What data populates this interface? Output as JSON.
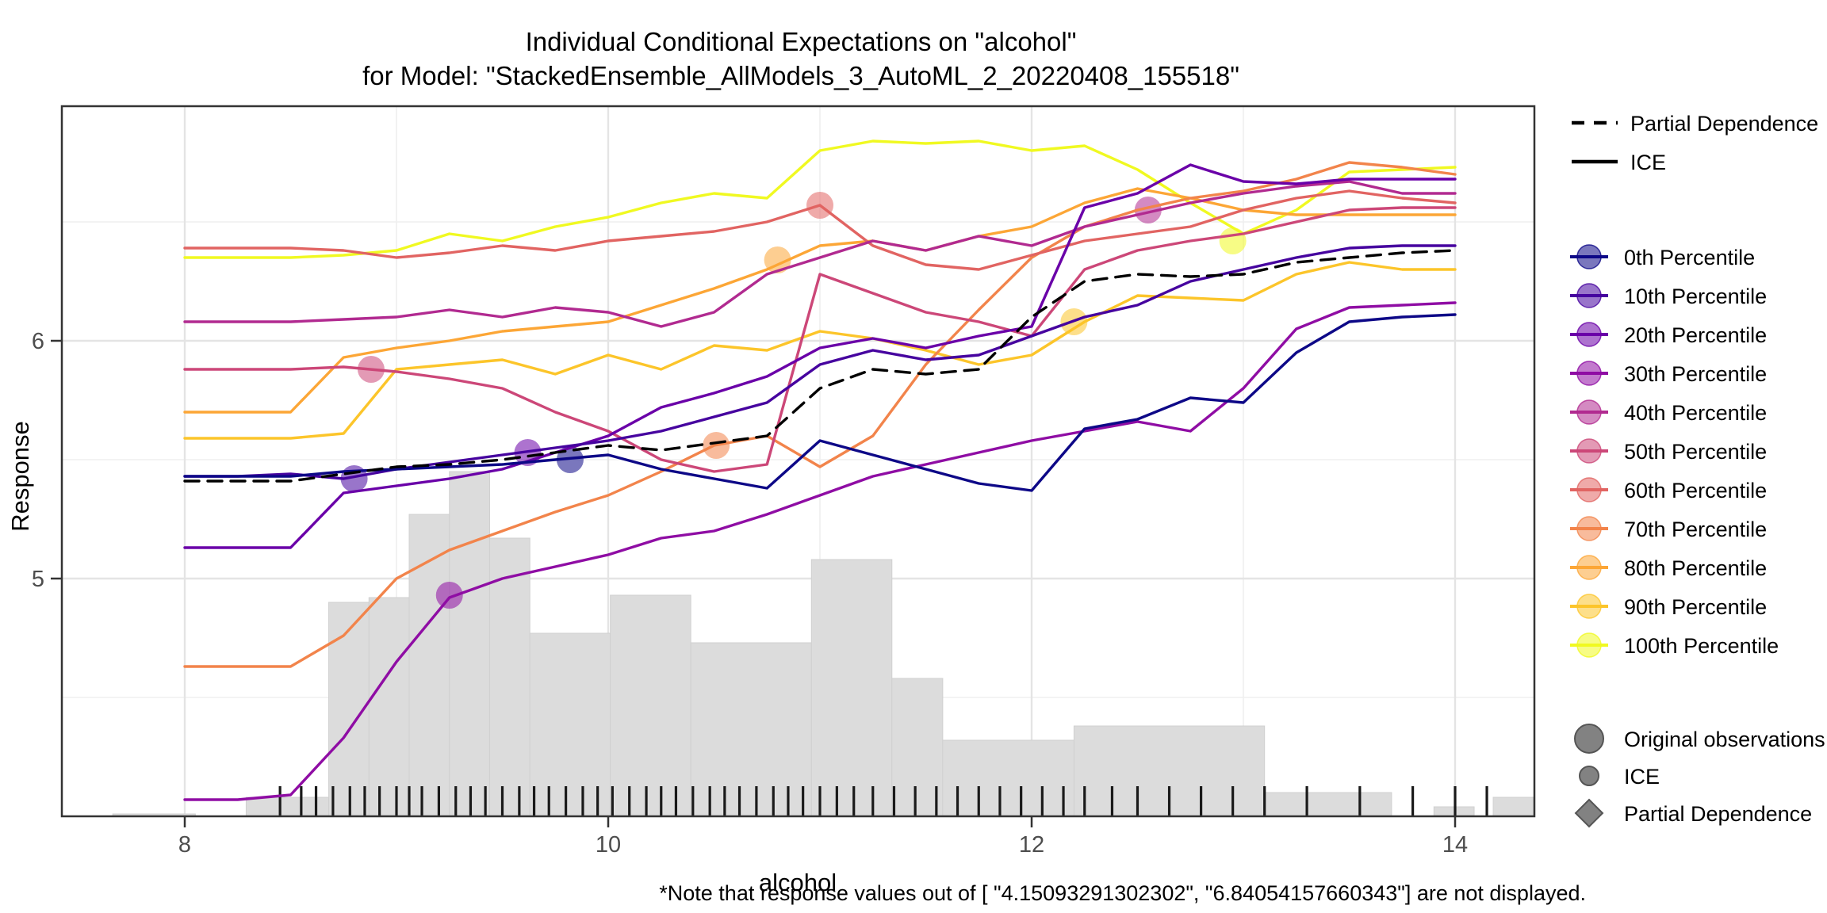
{
  "title": {
    "line1": "Individual Conditional Expectations on \"alcohol\"",
    "line2": "for Model: \"StackedEnsemble_AllModels_3_AutoML_2_20220408_155518\""
  },
  "footnote": "*Note that response values out of [ \"4.15093291302302\",  \"6.84054157660343\"] are not displayed.",
  "axes": {
    "x": {
      "label": "alcohol",
      "ticks": [
        8,
        10,
        12,
        14
      ],
      "minor_ticks": [
        9,
        11,
        13
      ],
      "range": [
        7.42,
        14.37
      ]
    },
    "y": {
      "label": "Response",
      "ticks": [
        5,
        6
      ],
      "minor_ticks": [
        4.5,
        5.5,
        6.5
      ],
      "range": [
        4.0,
        6.99
      ]
    }
  },
  "legend": {
    "line_types": [
      {
        "label": "Partial Dependence",
        "style": "dashed"
      },
      {
        "label": "ICE",
        "style": "solid"
      }
    ],
    "shape_types": [
      {
        "label": "Original observations",
        "shape": "circle-large"
      },
      {
        "label": "ICE",
        "shape": "circle-small"
      },
      {
        "label": "Partial Dependence",
        "shape": "diamond"
      }
    ],
    "marker_color": "#828282"
  },
  "colors": {
    "grid_major": "#e4e4e4",
    "grid_minor": "#efefef",
    "panel_border": "#333333",
    "histogram": "#dcdcdc",
    "pdp_line": "#000000",
    "rug": "#1a1a1a"
  },
  "chart_data": {
    "type": "line",
    "title": "Individual Conditional Expectations on \"alcohol\" for Model: StackedEnsemble_AllModels_3_AutoML_2_20220408_155518",
    "xlabel": "alcohol",
    "ylabel": "Response",
    "xlim": [
      7.42,
      14.37
    ],
    "ylim": [
      4.0,
      6.99
    ],
    "displayed_response_range": [
      4.15093291302302,
      6.84054157660343
    ],
    "x": [
      8.0,
      8.25,
      8.5,
      8.75,
      9.0,
      9.25,
      9.5,
      9.75,
      10.0,
      10.25,
      10.5,
      10.75,
      11.0,
      11.25,
      11.5,
      11.75,
      12.0,
      12.25,
      12.5,
      12.75,
      13.0,
      13.25,
      13.5,
      13.75,
      14.0
    ],
    "series": [
      {
        "name": "100th Percentile",
        "color": "#f0f921",
        "values": [
          6.35,
          6.35,
          6.35,
          6.36,
          6.38,
          6.45,
          6.42,
          6.48,
          6.52,
          6.58,
          6.62,
          6.6,
          6.8,
          6.84,
          6.83,
          6.84,
          6.8,
          6.82,
          6.72,
          6.58,
          6.45,
          6.55,
          6.71,
          6.72,
          6.73
        ],
        "observation": {
          "x": 12.95,
          "y": 6.42
        }
      },
      {
        "name": "90th Percentile",
        "color": "#fcc52a",
        "values": [
          5.59,
          5.59,
          5.59,
          5.61,
          5.88,
          5.9,
          5.92,
          5.86,
          5.94,
          5.88,
          5.98,
          5.96,
          6.04,
          6.01,
          5.96,
          5.9,
          5.94,
          6.08,
          6.19,
          6.18,
          6.17,
          6.28,
          6.33,
          6.3,
          6.3
        ],
        "observation": {
          "x": 12.2,
          "y": 6.08
        }
      },
      {
        "name": "80th Percentile",
        "color": "#fca636",
        "values": [
          5.7,
          5.7,
          5.7,
          5.93,
          5.97,
          6.0,
          6.04,
          6.06,
          6.08,
          6.15,
          6.22,
          6.3,
          6.4,
          6.42,
          6.38,
          6.44,
          6.48,
          6.58,
          6.64,
          6.6,
          6.55,
          6.53,
          6.53,
          6.53,
          6.53
        ],
        "observation": {
          "x": 10.8,
          "y": 6.34
        }
      },
      {
        "name": "70th Percentile",
        "color": "#f2844b",
        "values": [
          4.63,
          4.63,
          4.63,
          4.76,
          5.0,
          5.12,
          5.2,
          5.28,
          5.35,
          5.45,
          5.56,
          5.6,
          5.47,
          5.6,
          5.9,
          6.13,
          6.35,
          6.48,
          6.55,
          6.6,
          6.63,
          6.68,
          6.75,
          6.73,
          6.7
        ],
        "observation": {
          "x": 10.51,
          "y": 5.56
        }
      },
      {
        "name": "60th Percentile",
        "color": "#e16462",
        "values": [
          6.39,
          6.39,
          6.39,
          6.38,
          6.35,
          6.37,
          6.4,
          6.38,
          6.42,
          6.44,
          6.46,
          6.5,
          6.57,
          6.4,
          6.32,
          6.3,
          6.36,
          6.42,
          6.45,
          6.48,
          6.55,
          6.6,
          6.63,
          6.6,
          6.58
        ],
        "observation": {
          "x": 11.0,
          "y": 6.57
        }
      },
      {
        "name": "50th Percentile",
        "color": "#cc4778",
        "values": [
          5.88,
          5.88,
          5.88,
          5.89,
          5.87,
          5.84,
          5.8,
          5.7,
          5.62,
          5.5,
          5.45,
          5.48,
          6.28,
          6.2,
          6.12,
          6.08,
          6.02,
          6.3,
          6.38,
          6.42,
          6.45,
          6.5,
          6.55,
          6.56,
          6.56
        ],
        "observation": {
          "x": 8.88,
          "y": 5.88
        }
      },
      {
        "name": "40th Percentile",
        "color": "#b12a90",
        "values": [
          6.08,
          6.08,
          6.08,
          6.09,
          6.1,
          6.13,
          6.1,
          6.14,
          6.12,
          6.06,
          6.12,
          6.28,
          6.35,
          6.42,
          6.38,
          6.44,
          6.4,
          6.48,
          6.53,
          6.58,
          6.62,
          6.65,
          6.67,
          6.62,
          6.62
        ],
        "observation": {
          "x": 12.55,
          "y": 6.55
        }
      },
      {
        "name": "30th Percentile",
        "color": "#8f0da4",
        "values": [
          4.07,
          4.07,
          4.09,
          4.33,
          4.65,
          4.92,
          5.0,
          5.05,
          5.1,
          5.17,
          5.2,
          5.27,
          5.35,
          5.43,
          5.48,
          5.53,
          5.58,
          5.62,
          5.66,
          5.62,
          5.8,
          6.05,
          6.14,
          6.15,
          6.16
        ],
        "observation": {
          "x": 9.25,
          "y": 4.93
        }
      },
      {
        "name": "20th Percentile",
        "color": "#6a00a8",
        "values": [
          5.13,
          5.13,
          5.13,
          5.36,
          5.39,
          5.42,
          5.46,
          5.53,
          5.6,
          5.72,
          5.78,
          5.85,
          5.97,
          6.01,
          5.97,
          6.02,
          6.06,
          6.56,
          6.62,
          6.74,
          6.67,
          6.66,
          6.68,
          6.68,
          6.68
        ],
        "observation": {
          "x": 9.62,
          "y": 5.53
        }
      },
      {
        "name": "10th Percentile",
        "color": "#46039f",
        "values": [
          5.43,
          5.43,
          5.44,
          5.42,
          5.46,
          5.49,
          5.52,
          5.55,
          5.58,
          5.62,
          5.68,
          5.74,
          5.9,
          5.96,
          5.92,
          5.94,
          6.02,
          6.1,
          6.15,
          6.25,
          6.3,
          6.35,
          6.39,
          6.4,
          6.4
        ],
        "observation": {
          "x": 8.8,
          "y": 5.42
        }
      },
      {
        "name": "0th Percentile",
        "color": "#0d0887",
        "values": [
          5.43,
          5.43,
          5.43,
          5.45,
          5.46,
          5.47,
          5.48,
          5.5,
          5.52,
          5.46,
          5.42,
          5.38,
          5.58,
          5.52,
          5.46,
          5.4,
          5.37,
          5.63,
          5.67,
          5.76,
          5.74,
          5.95,
          6.08,
          6.1,
          6.11
        ],
        "observation": {
          "x": 9.82,
          "y": 5.5
        }
      },
      {
        "name": "Partial Dependence",
        "color": "#000000",
        "dashed": true,
        "values": [
          5.41,
          5.41,
          5.41,
          5.44,
          5.47,
          5.48,
          5.5,
          5.53,
          5.56,
          5.54,
          5.57,
          5.6,
          5.8,
          5.88,
          5.86,
          5.88,
          6.1,
          6.25,
          6.28,
          6.27,
          6.28,
          6.33,
          6.35,
          6.37,
          6.38
        ]
      }
    ],
    "histogram": {
      "baseline": 4.0,
      "bins": [
        [
          7.66,
          8.05,
          4.01
        ],
        [
          8.29,
          8.68,
          4.08
        ],
        [
          8.68,
          8.87,
          4.9
        ],
        [
          8.87,
          9.06,
          4.92
        ],
        [
          9.06,
          9.25,
          5.27
        ],
        [
          9.25,
          9.44,
          5.45
        ],
        [
          9.44,
          9.63,
          5.17
        ],
        [
          9.63,
          10.01,
          4.77
        ],
        [
          10.01,
          10.39,
          4.93
        ],
        [
          10.39,
          10.96,
          4.73
        ],
        [
          10.96,
          11.34,
          5.08
        ],
        [
          11.34,
          11.58,
          4.58
        ],
        [
          11.58,
          12.2,
          4.32
        ],
        [
          12.2,
          13.1,
          4.38
        ],
        [
          13.1,
          13.7,
          4.1
        ],
        [
          13.9,
          14.09,
          4.04
        ],
        [
          14.18,
          14.37,
          4.08
        ]
      ]
    },
    "rug": [
      8.45,
      8.55,
      8.62,
      8.7,
      8.78,
      8.85,
      8.92,
      9.0,
      9.06,
      9.12,
      9.2,
      9.28,
      9.35,
      9.42,
      9.5,
      9.58,
      9.65,
      9.72,
      9.8,
      9.88,
      9.95,
      10.02,
      10.1,
      10.18,
      10.25,
      10.32,
      10.4,
      10.48,
      10.55,
      10.62,
      10.7,
      10.78,
      10.85,
      10.92,
      11.0,
      11.08,
      11.16,
      11.25,
      11.35,
      11.45,
      11.55,
      11.65,
      11.75,
      11.85,
      11.95,
      12.05,
      12.15,
      12.25,
      12.38,
      12.5,
      12.65,
      12.8,
      12.95,
      13.1,
      13.3,
      13.55,
      13.8,
      14.0,
      14.15
    ]
  }
}
